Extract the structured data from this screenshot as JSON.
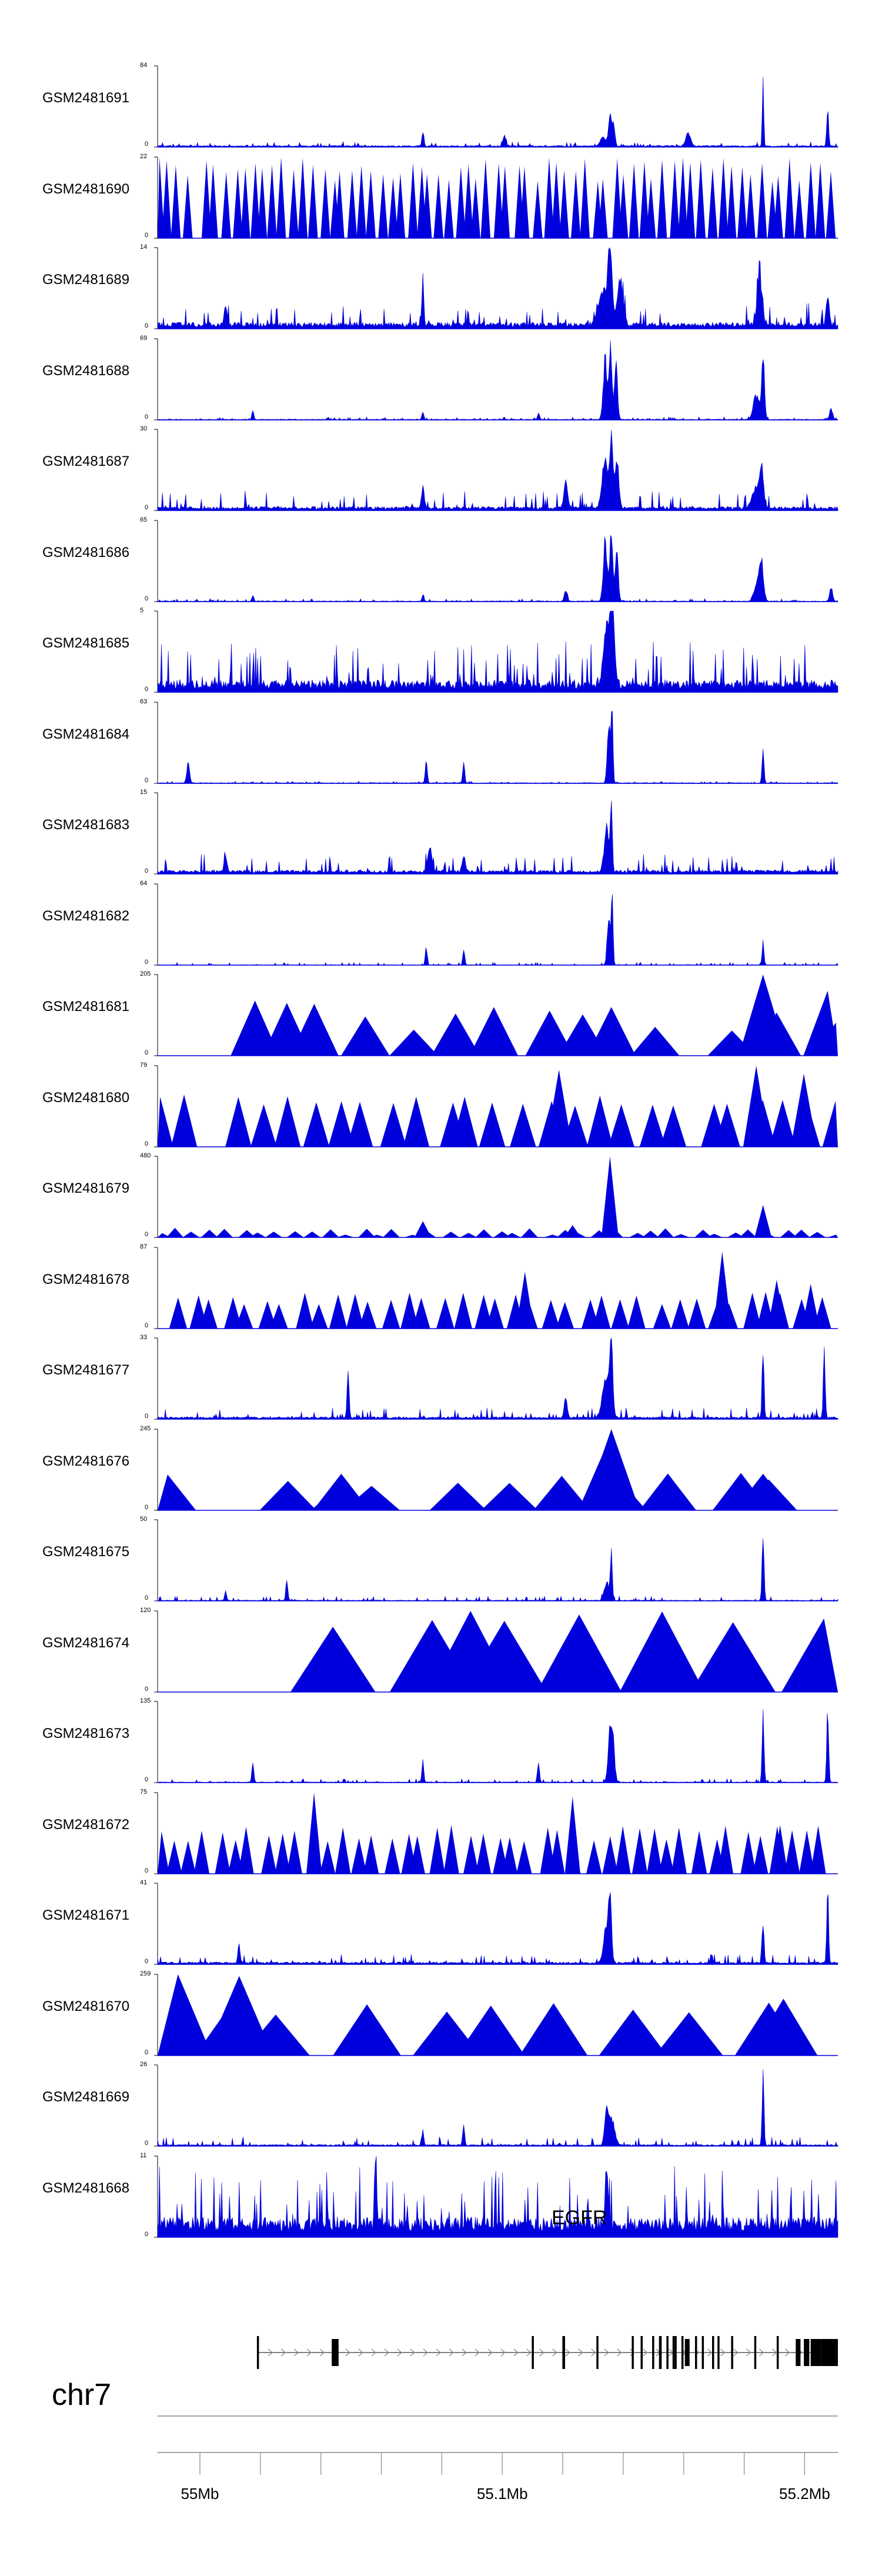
{
  "chart_data": {
    "type": "area",
    "title": "",
    "xlabel": "",
    "ylabel": "",
    "chromosome": "chr7",
    "xlim_mb": [
      54.986,
      55.211
    ],
    "x_ticks": [
      {
        "value_mb": 55.0,
        "label": "55Mb"
      },
      {
        "value_mb": 55.1,
        "label": "55.1Mb"
      },
      {
        "value_mb": 55.2,
        "label": "55.2Mb"
      }
    ],
    "series_color": "#0000dd",
    "tracks": [
      {
        "label": "GSM2481691",
        "ymax": "84",
        "style": "dense",
        "base": 0.02,
        "noise": 0.05,
        "seed": 11,
        "peaks": [
          [
            0.655,
            0.12,
            0.006
          ],
          [
            0.665,
            0.45,
            0.003
          ],
          [
            0.67,
            0.3,
            0.003
          ],
          [
            0.78,
            0.18,
            0.005
          ],
          [
            0.89,
            1.0,
            0.0015
          ],
          [
            0.985,
            0.55,
            0.002
          ],
          [
            0.39,
            0.22,
            0.002
          ],
          [
            0.51,
            0.14,
            0.003
          ]
        ]
      },
      {
        "label": "GSM2481690",
        "ymax": "22",
        "style": "sparse",
        "seed": 12,
        "density": 70,
        "minh": 0.7,
        "maxh": 1.0,
        "gaps": [
          [
            0.05,
            0.06
          ]
        ]
      },
      {
        "label": "GSM2481689",
        "ymax": "14",
        "style": "dense",
        "base": 0.08,
        "noise": 0.25,
        "seed": 13,
        "peaks": [
          [
            0.655,
            0.45,
            0.01
          ],
          [
            0.665,
            1.0,
            0.004
          ],
          [
            0.68,
            0.65,
            0.006
          ],
          [
            0.885,
            0.7,
            0.005
          ],
          [
            0.39,
            0.7,
            0.002
          ],
          [
            0.985,
            0.45,
            0.003
          ],
          [
            0.1,
            0.3,
            0.003
          ]
        ]
      },
      {
        "label": "GSM2481688",
        "ymax": "69",
        "style": "dense",
        "base": 0.01,
        "noise": 0.03,
        "seed": 14,
        "peaks": [
          [
            0.658,
            0.85,
            0.004
          ],
          [
            0.666,
            1.0,
            0.003
          ],
          [
            0.674,
            0.8,
            0.003
          ],
          [
            0.88,
            0.35,
            0.006
          ],
          [
            0.89,
            0.85,
            0.003
          ],
          [
            0.99,
            0.15,
            0.003
          ],
          [
            0.14,
            0.12,
            0.002
          ],
          [
            0.39,
            0.1,
            0.002
          ],
          [
            0.56,
            0.09,
            0.002
          ]
        ]
      },
      {
        "label": "GSM2481687",
        "ymax": "30",
        "style": "dense",
        "base": 0.05,
        "noise": 0.2,
        "seed": 15,
        "peaks": [
          [
            0.658,
            0.75,
            0.006
          ],
          [
            0.667,
            1.0,
            0.003
          ],
          [
            0.675,
            0.7,
            0.004
          ],
          [
            0.88,
            0.3,
            0.008
          ],
          [
            0.888,
            0.5,
            0.004
          ],
          [
            0.6,
            0.35,
            0.004
          ],
          [
            0.39,
            0.3,
            0.003
          ]
        ]
      },
      {
        "label": "GSM2481686",
        "ymax": "65",
        "style": "dense",
        "base": 0.01,
        "noise": 0.03,
        "seed": 16,
        "peaks": [
          [
            0.658,
            0.85,
            0.004
          ],
          [
            0.667,
            1.0,
            0.003
          ],
          [
            0.675,
            0.75,
            0.003
          ],
          [
            0.882,
            0.3,
            0.006
          ],
          [
            0.888,
            0.45,
            0.004
          ],
          [
            0.6,
            0.15,
            0.003
          ],
          [
            0.99,
            0.2,
            0.003
          ],
          [
            0.14,
            0.09,
            0.002
          ],
          [
            0.39,
            0.08,
            0.002
          ]
        ]
      },
      {
        "label": "GSM2481685",
        "ymax": "5",
        "style": "dense",
        "base": 0.15,
        "noise": 0.5,
        "seed": 17,
        "peaks": [
          [
            0.66,
            0.85,
            0.006
          ],
          [
            0.667,
            1.0,
            0.003
          ],
          [
            0.67,
            0.7,
            0.004
          ]
        ]
      },
      {
        "label": "GSM2481684",
        "ymax": "63",
        "style": "dense",
        "base": 0.01,
        "noise": 0.02,
        "seed": 18,
        "peaks": [
          [
            0.045,
            0.27,
            0.003
          ],
          [
            0.395,
            0.35,
            0.002
          ],
          [
            0.45,
            0.3,
            0.002
          ],
          [
            0.663,
            0.85,
            0.003
          ],
          [
            0.668,
            1.0,
            0.002
          ],
          [
            0.89,
            0.45,
            0.002
          ]
        ]
      },
      {
        "label": "GSM2481683",
        "ymax": "15",
        "style": "dense",
        "base": 0.05,
        "noise": 0.2,
        "seed": 19,
        "peaks": [
          [
            0.66,
            0.6,
            0.005
          ],
          [
            0.667,
            1.0,
            0.002
          ],
          [
            0.4,
            0.35,
            0.004
          ],
          [
            0.45,
            0.25,
            0.003
          ],
          [
            0.1,
            0.2,
            0.003
          ]
        ]
      },
      {
        "label": "GSM2481682",
        "ymax": "64",
        "style": "dense",
        "base": 0.005,
        "noise": 0.03,
        "seed": 20,
        "peaks": [
          [
            0.663,
            0.7,
            0.003
          ],
          [
            0.668,
            1.0,
            0.002
          ],
          [
            0.395,
            0.25,
            0.002
          ],
          [
            0.45,
            0.22,
            0.002
          ],
          [
            0.89,
            0.32,
            0.002
          ]
        ]
      },
      {
        "label": "GSM2481681",
        "ymax": "205",
        "style": "sparse",
        "seed": 21,
        "density": 14,
        "minh": 0.3,
        "maxh": 0.7,
        "gaps": [
          [
            0.06,
            0.12
          ],
          [
            0.78,
            0.84
          ]
        ],
        "spikes": [
          [
            0.19,
            0.65
          ],
          [
            0.667,
            0.6
          ],
          [
            0.89,
            1.0
          ],
          [
            0.985,
            0.8
          ]
        ]
      },
      {
        "label": "GSM2481680",
        "ymax": "79",
        "style": "sparse",
        "seed": 22,
        "density": 26,
        "minh": 0.5,
        "maxh": 0.65,
        "gaps": [
          [
            0.04,
            0.085
          ]
        ],
        "spikes": [
          [
            0.59,
            0.95
          ],
          [
            0.88,
            1.0
          ],
          [
            0.95,
            0.9
          ]
        ]
      },
      {
        "label": "GSM2481679",
        "ymax": "480",
        "style": "sparse",
        "seed": 23,
        "density": 40,
        "minh": 0.03,
        "maxh": 0.12,
        "gaps": [],
        "spikes": [
          [
            0.665,
            1.0
          ],
          [
            0.89,
            0.4
          ],
          [
            0.39,
            0.2
          ],
          [
            0.61,
            0.15
          ]
        ]
      },
      {
        "label": "GSM2481678",
        "ymax": "87",
        "style": "sparse",
        "seed": 24,
        "density": 38,
        "minh": 0.3,
        "maxh": 0.45,
        "gaps": [
          [
            0.02,
            0.03
          ]
        ],
        "spikes": [
          [
            0.54,
            0.7
          ],
          [
            0.83,
            0.95
          ],
          [
            0.91,
            0.6
          ],
          [
            0.96,
            0.55
          ]
        ]
      },
      {
        "label": "GSM2481677",
        "ymax": "33",
        "style": "dense",
        "base": 0.03,
        "noise": 0.12,
        "seed": 25,
        "peaks": [
          [
            0.66,
            0.55,
            0.008
          ],
          [
            0.667,
            0.85,
            0.003
          ],
          [
            0.89,
            1.0,
            0.002
          ],
          [
            0.98,
            0.95,
            0.002
          ],
          [
            0.28,
            0.7,
            0.002
          ],
          [
            0.6,
            0.3,
            0.003
          ]
        ]
      },
      {
        "label": "GSM2481676",
        "ymax": "245",
        "style": "sparse",
        "seed": 26,
        "density": 12,
        "minh": 0.3,
        "maxh": 0.5,
        "gaps": [
          [
            0.05,
            0.1
          ],
          [
            0.96,
            1.0
          ]
        ],
        "spikes": [
          [
            0.667,
            1.0
          ],
          [
            0.66,
            0.8
          ],
          [
            0.27,
            0.45
          ],
          [
            0.89,
            0.45
          ]
        ]
      },
      {
        "label": "GSM2481675",
        "ymax": "50",
        "style": "dense",
        "base": 0.01,
        "noise": 0.05,
        "seed": 27,
        "peaks": [
          [
            0.66,
            0.25,
            0.005
          ],
          [
            0.667,
            0.7,
            0.002
          ],
          [
            0.89,
            1.0,
            0.002
          ],
          [
            0.19,
            0.3,
            0.002
          ],
          [
            0.1,
            0.12,
            0.002
          ]
        ]
      },
      {
        "label": "GSM2481674",
        "ymax": "120",
        "style": "sparse",
        "seed": 28,
        "density": 8,
        "minh": 0.8,
        "maxh": 1.0,
        "gaps": [
          [
            0.06,
            0.19
          ]
        ],
        "spikes": [
          [
            0.46,
            1.0
          ]
        ]
      },
      {
        "label": "GSM2481673",
        "ymax": "135",
        "style": "dense",
        "base": 0.01,
        "noise": 0.04,
        "seed": 29,
        "peaks": [
          [
            0.665,
            0.7,
            0.004
          ],
          [
            0.67,
            0.5,
            0.003
          ],
          [
            0.89,
            0.95,
            0.002
          ],
          [
            0.985,
            1.0,
            0.002
          ],
          [
            0.14,
            0.3,
            0.002
          ],
          [
            0.39,
            0.3,
            0.002
          ],
          [
            0.56,
            0.3,
            0.002
          ]
        ]
      },
      {
        "label": "GSM2481672",
        "ymax": "75",
        "style": "sparse",
        "seed": 30,
        "density": 44,
        "minh": 0.4,
        "maxh": 0.6,
        "gaps": [],
        "spikes": [
          [
            0.23,
            1.0
          ],
          [
            0.61,
            0.95
          ],
          [
            0.915,
            0.6
          ]
        ]
      },
      {
        "label": "GSM2481671",
        "ymax": "41",
        "style": "dense",
        "base": 0.03,
        "noise": 0.1,
        "seed": 31,
        "peaks": [
          [
            0.665,
            0.8,
            0.003
          ],
          [
            0.66,
            0.5,
            0.006
          ],
          [
            0.985,
            1.0,
            0.002
          ],
          [
            0.89,
            0.6,
            0.002
          ],
          [
            0.12,
            0.25,
            0.002
          ]
        ]
      },
      {
        "label": "GSM2481670",
        "ymax": "259",
        "style": "sparse",
        "seed": 32,
        "density": 10,
        "minh": 0.5,
        "maxh": 0.65,
        "gaps": [
          [
            0.05,
            0.07
          ],
          [
            0.985,
            1.0
          ]
        ],
        "spikes": [
          [
            0.03,
            1.0
          ],
          [
            0.12,
            0.98
          ],
          [
            0.92,
            0.7
          ]
        ]
      },
      {
        "label": "GSM2481669",
        "ymax": "26",
        "style": "dense",
        "base": 0.02,
        "noise": 0.1,
        "seed": 33,
        "peaks": [
          [
            0.66,
            0.45,
            0.004
          ],
          [
            0.668,
            0.35,
            0.006
          ],
          [
            0.89,
            1.0,
            0.002
          ],
          [
            0.45,
            0.3,
            0.002
          ],
          [
            0.39,
            0.2,
            0.002
          ]
        ]
      },
      {
        "label": "GSM2481668",
        "ymax": "11",
        "style": "dense",
        "base": 0.25,
        "noise": 0.7,
        "seed": 34,
        "peaks": [
          [
            0.32,
            1.0,
            0.002
          ],
          [
            0.66,
            0.8,
            0.003
          ]
        ]
      }
    ],
    "tracks_ymin_label": "0",
    "gene": {
      "name": "EGFR",
      "start_frac": 0.146,
      "end_frac": 1.0,
      "exons": [
        [
          0.146,
          0.149
        ],
        [
          0.256,
          0.266
        ],
        [
          0.55,
          0.553
        ],
        [
          0.595,
          0.599
        ],
        [
          0.645,
          0.648
        ],
        [
          0.697,
          0.7
        ],
        [
          0.71,
          0.713
        ],
        [
          0.727,
          0.73
        ],
        [
          0.737,
          0.741
        ],
        [
          0.748,
          0.751
        ],
        [
          0.757,
          0.76
        ],
        [
          0.76,
          0.763
        ],
        [
          0.77,
          0.773
        ],
        [
          0.775,
          0.782
        ],
        [
          0.79,
          0.793
        ],
        [
          0.8,
          0.803
        ],
        [
          0.815,
          0.818
        ],
        [
          0.823,
          0.826
        ],
        [
          0.843,
          0.846
        ],
        [
          0.877,
          0.88
        ],
        [
          0.91,
          0.913
        ],
        [
          0.938,
          0.945
        ],
        [
          0.95,
          0.958
        ],
        [
          0.96,
          0.975
        ],
        [
          0.975,
          1.0
        ]
      ]
    }
  }
}
